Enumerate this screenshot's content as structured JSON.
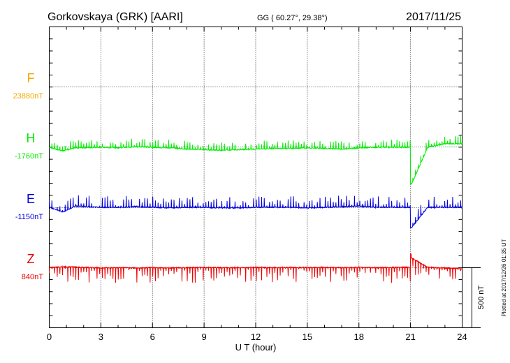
{
  "header": {
    "station": "Gorkovskaya (GRK)  [AARI]",
    "coords": "GG ( 60.27°,  29.38°)",
    "date": "2017/11/25"
  },
  "footer": {
    "plotted": "Plotted at 2017/12/26 01:35 UT"
  },
  "colors": {
    "F": "#f5a800",
    "H": "#00ee00",
    "E": "#0000dd",
    "Z": "#ee0000",
    "grid": "#000000"
  },
  "chart_data": {
    "type": "line",
    "xlabel": "U T (hour)",
    "xlim": [
      0,
      24
    ],
    "x_ticks": [
      "0",
      "3",
      "6",
      "9",
      "12",
      "15",
      "18",
      "21",
      "24"
    ],
    "scale_label": "500 nT",
    "series": [
      {
        "name": "F",
        "baseline_label": "23880nT",
        "baseline_nT": 23880,
        "values": []
      },
      {
        "name": "H",
        "baseline_label": "-1760nT",
        "baseline_nT": -1760,
        "x": [
          0,
          0.5,
          0.8,
          1.5,
          3,
          4,
          5,
          6,
          7,
          8,
          9,
          10,
          11,
          12,
          13,
          14,
          15,
          16,
          17,
          18,
          19,
          20,
          21,
          21.05,
          22,
          23,
          24
        ],
        "values": [
          -1760,
          -1780,
          -1790,
          -1765,
          -1760,
          -1765,
          -1755,
          -1760,
          -1765,
          -1775,
          -1780,
          -1785,
          -1780,
          -1775,
          -1770,
          -1770,
          -1765,
          -1770,
          -1775,
          -1765,
          -1760,
          -1760,
          -1760,
          -2070,
          -1760,
          -1730,
          -1730
        ]
      },
      {
        "name": "E",
        "baseline_label": "-1150nT",
        "baseline_nT": -1150,
        "x": [
          0,
          0.8,
          1.5,
          3,
          4,
          5,
          6,
          7,
          8,
          9,
          10,
          11,
          12,
          13,
          14,
          15,
          16,
          17,
          18,
          19,
          20,
          21,
          21.05,
          22,
          23,
          24
        ],
        "values": [
          -1150,
          -1190,
          -1140,
          -1150,
          -1150,
          -1145,
          -1150,
          -1155,
          -1150,
          -1150,
          -1155,
          -1155,
          -1150,
          -1150,
          -1150,
          -1155,
          -1150,
          -1145,
          -1140,
          -1150,
          -1150,
          -1150,
          -1320,
          -1150,
          -1150,
          -1150
        ]
      },
      {
        "name": "Z",
        "baseline_label": "840nT",
        "baseline_nT": 840,
        "x": [
          0,
          1,
          2,
          3,
          4,
          5,
          6,
          7,
          8,
          9,
          10,
          11,
          12,
          13,
          14,
          15,
          16,
          17,
          18,
          19,
          20,
          21,
          21.05,
          22,
          23,
          24
        ],
        "values": [
          840,
          845,
          840,
          835,
          838,
          835,
          838,
          835,
          838,
          840,
          838,
          838,
          840,
          838,
          840,
          838,
          840,
          838,
          840,
          838,
          840,
          840,
          920,
          840,
          835,
          830
        ]
      }
    ]
  }
}
